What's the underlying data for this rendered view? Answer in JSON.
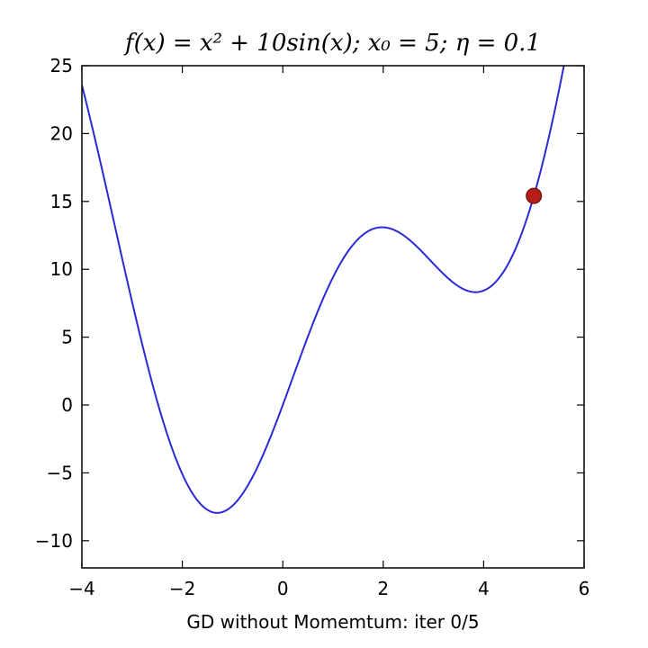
{
  "chart_data": {
    "type": "line",
    "title": "f(x) = x² + 10sin(x); x₀ = 5; η = 0.1",
    "xlabel": "GD without Momemtum: iter 0/5",
    "ylabel": "",
    "xlim": [
      -4,
      6
    ],
    "ylim": [
      -12,
      25
    ],
    "xticks": [
      -4,
      -2,
      0,
      2,
      4,
      6
    ],
    "yticks": [
      -10,
      -5,
      0,
      5,
      10,
      15,
      20,
      25
    ],
    "xtick_labels": [
      "−4",
      "−2",
      "0",
      "2",
      "4",
      "6"
    ],
    "ytick_labels": [
      "−10",
      "−5",
      "0",
      "5",
      "10",
      "15",
      "20",
      "25"
    ],
    "grid": false,
    "series": [
      {
        "function": "x^2 + 10*sin(x)",
        "x_range": [
          -4,
          6
        ],
        "color": "#2a2ad6"
      }
    ],
    "point": {
      "x": 5,
      "y": 15.41,
      "color": "#b51e14"
    }
  }
}
